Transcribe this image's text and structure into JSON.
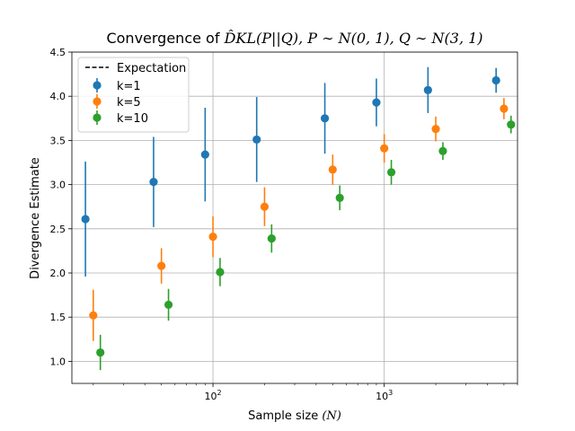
{
  "chart_data": {
    "type": "scatter",
    "title_prefix": "Convergence of ",
    "title_math": "D̂KL(P||Q), P ∼ N(0, 1), Q ∼ N(3, 1)",
    "xlabel_text": "Sample size ",
    "xlabel_math": "(N)",
    "ylabel": "Divergence Estimate",
    "xscale": "log",
    "xlim": [
      15,
      6000
    ],
    "ylim": [
      0.75,
      4.5
    ],
    "yticks": [
      "1.0",
      "1.5",
      "2.0",
      "2.5",
      "3.0",
      "3.5",
      "4.0",
      "4.5"
    ],
    "ytick_values": [
      1.0,
      1.5,
      2.0,
      2.5,
      3.0,
      3.5,
      4.0,
      4.5
    ],
    "xticks": [
      {
        "value": 100,
        "base": "10",
        "exp": "2"
      },
      {
        "value": 1000,
        "base": "10",
        "exp": "3"
      }
    ],
    "grid": true,
    "legend_position": "upper-left",
    "legend": {
      "expectation_label": "Expectation"
    },
    "series": [
      {
        "name": "k=1",
        "color": "#1f77b4",
        "x": [
          18,
          45,
          90,
          180,
          450,
          900,
          1800,
          4500
        ],
        "y": [
          2.61,
          3.03,
          3.34,
          3.51,
          3.75,
          3.93,
          4.07,
          4.18
        ],
        "err": [
          0.65,
          0.51,
          0.53,
          0.48,
          0.4,
          0.27,
          0.26,
          0.14
        ]
      },
      {
        "name": "k=5",
        "color": "#ff7f0e",
        "x": [
          20,
          50,
          100,
          200,
          500,
          1000,
          2000,
          5000
        ],
        "y": [
          1.52,
          2.08,
          2.41,
          2.75,
          3.17,
          3.41,
          3.63,
          3.86
        ],
        "err": [
          0.29,
          0.2,
          0.23,
          0.22,
          0.17,
          0.16,
          0.14,
          0.12
        ]
      },
      {
        "name": "k=10",
        "color": "#2ca02c",
        "x": [
          22,
          55,
          110,
          220,
          550,
          1100,
          2200,
          5500
        ],
        "y": [
          1.1,
          1.64,
          2.01,
          2.39,
          2.85,
          3.14,
          3.38,
          3.68
        ],
        "err": [
          0.2,
          0.18,
          0.16,
          0.16,
          0.14,
          0.14,
          0.1,
          0.1
        ]
      }
    ]
  }
}
